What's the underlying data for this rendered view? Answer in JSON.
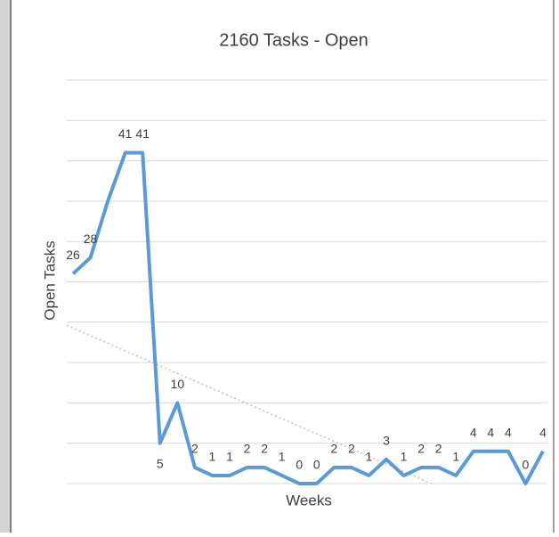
{
  "chart_data": {
    "type": "line",
    "title": "2160 Tasks - Open",
    "y_label": "Open Tasks",
    "x_label": "Weeks",
    "values": [
      26,
      28,
      35,
      41,
      41,
      5,
      10,
      2,
      1,
      1,
      2,
      2,
      1,
      0,
      0,
      2,
      2,
      1,
      3,
      1,
      2,
      2,
      1,
      4,
      4,
      4,
      0,
      4
    ],
    "value_labels": [
      "26",
      "28",
      null,
      "41",
      "41",
      "5",
      "10",
      "2",
      "1",
      "1",
      "2",
      "2",
      "1",
      "0",
      "0",
      "2",
      "2",
      "1",
      "3",
      "1",
      "2",
      "2",
      "1",
      "4",
      "4",
      "4",
      "0",
      "4"
    ],
    "color": "#5b9bd5",
    "trendline": [
      19.6,
      -6
    ],
    "ylim": [
      0,
      50
    ],
    "yticks": [
      0,
      5,
      10,
      15,
      20,
      25,
      30,
      35,
      40,
      45,
      50
    ],
    "grid": true
  }
}
